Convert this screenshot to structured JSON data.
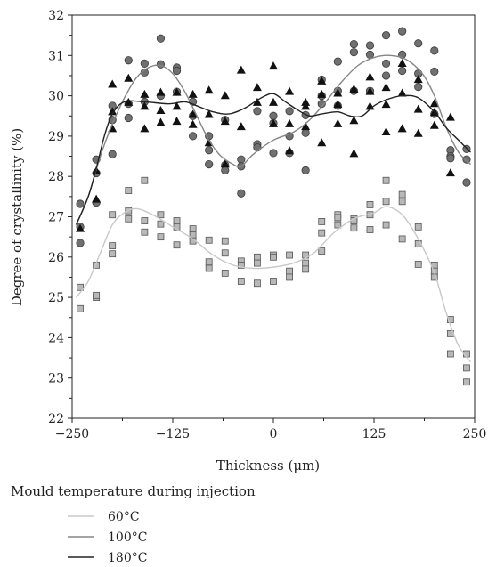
{
  "chart_data": {
    "type": "scatter",
    "xlabel": "Thickness (μm)",
    "ylabel": "Degree of crystallinity (%)",
    "xlim": [
      -250,
      250
    ],
    "ylim": [
      22,
      32
    ],
    "xticks": [
      -250,
      -125,
      0,
      125,
      250
    ],
    "yticks": [
      22,
      23,
      24,
      25,
      26,
      27,
      28,
      29,
      30,
      31,
      32
    ],
    "xtick_labels": [
      "−250",
      "−125",
      "0",
      "125",
      "250"
    ],
    "ytick_labels": [
      "22",
      "23",
      "24",
      "25",
      "26",
      "27",
      "28",
      "29",
      "30",
      "31",
      "32"
    ],
    "grid": false,
    "legend": {
      "title": "Mould temperature during injection",
      "placement": "bottom-left"
    },
    "series": [
      {
        "name": "60°C",
        "marker": "square",
        "marker_color": "#b8b8b8",
        "line_color": "#c8c8c8",
        "points": [
          [
            -240,
            25.25
          ],
          [
            -240,
            24.72
          ],
          [
            -220,
            25.8
          ],
          [
            -220,
            25.0
          ],
          [
            -220,
            25.05
          ],
          [
            -200,
            27.05
          ],
          [
            -200,
            26.28
          ],
          [
            -200,
            26.08
          ],
          [
            -180,
            27.65
          ],
          [
            -180,
            27.15
          ],
          [
            -180,
            26.95
          ],
          [
            -160,
            27.9
          ],
          [
            -160,
            26.9
          ],
          [
            -160,
            26.62
          ],
          [
            -140,
            27.05
          ],
          [
            -140,
            26.82
          ],
          [
            -140,
            26.5
          ],
          [
            -120,
            26.9
          ],
          [
            -120,
            26.75
          ],
          [
            -120,
            26.3
          ],
          [
            -100,
            26.7
          ],
          [
            -100,
            26.55
          ],
          [
            -100,
            26.4
          ],
          [
            -80,
            26.42
          ],
          [
            -80,
            25.88
          ],
          [
            -80,
            25.72
          ],
          [
            -60,
            26.4
          ],
          [
            -60,
            26.1
          ],
          [
            -60,
            25.6
          ],
          [
            -40,
            25.9
          ],
          [
            -40,
            25.8
          ],
          [
            -40,
            25.4
          ],
          [
            -20,
            26.0
          ],
          [
            -20,
            25.85
          ],
          [
            -20,
            25.35
          ],
          [
            0,
            26.05
          ],
          [
            0,
            26.0
          ],
          [
            0,
            25.4
          ],
          [
            20,
            26.05
          ],
          [
            20,
            25.65
          ],
          [
            20,
            25.5
          ],
          [
            40,
            26.05
          ],
          [
            40,
            25.85
          ],
          [
            40,
            25.7
          ],
          [
            60,
            26.88
          ],
          [
            60,
            26.6
          ],
          [
            60,
            26.15
          ],
          [
            80,
            27.05
          ],
          [
            80,
            26.98
          ],
          [
            80,
            26.8
          ],
          [
            100,
            26.95
          ],
          [
            100,
            26.9
          ],
          [
            100,
            26.72
          ],
          [
            120,
            27.3
          ],
          [
            120,
            27.05
          ],
          [
            120,
            26.68
          ],
          [
            140,
            27.9
          ],
          [
            140,
            27.38
          ],
          [
            140,
            26.8
          ],
          [
            160,
            27.55
          ],
          [
            160,
            27.38
          ],
          [
            160,
            26.45
          ],
          [
            180,
            26.75
          ],
          [
            180,
            26.33
          ],
          [
            180,
            25.82
          ],
          [
            200,
            25.8
          ],
          [
            200,
            25.65
          ],
          [
            200,
            25.5
          ],
          [
            220,
            24.45
          ],
          [
            220,
            24.1
          ],
          [
            220,
            23.6
          ],
          [
            240,
            23.6
          ],
          [
            240,
            23.25
          ],
          [
            240,
            22.9
          ]
        ],
        "fit": [
          [
            -245,
            25.0
          ],
          [
            -230,
            25.4
          ],
          [
            -215,
            26.1
          ],
          [
            -200,
            26.8
          ],
          [
            -185,
            27.1
          ],
          [
            -170,
            27.2
          ],
          [
            -150,
            27.05
          ],
          [
            -125,
            26.75
          ],
          [
            -100,
            26.45
          ],
          [
            -75,
            26.05
          ],
          [
            -50,
            25.8
          ],
          [
            -25,
            25.72
          ],
          [
            0,
            25.75
          ],
          [
            25,
            25.85
          ],
          [
            50,
            26.1
          ],
          [
            75,
            26.6
          ],
          [
            100,
            26.95
          ],
          [
            125,
            27.1
          ],
          [
            140,
            27.25
          ],
          [
            160,
            27.05
          ],
          [
            180,
            26.45
          ],
          [
            200,
            25.6
          ],
          [
            215,
            24.6
          ],
          [
            230,
            23.8
          ],
          [
            245,
            23.4
          ]
        ]
      },
      {
        "name": "100°C",
        "marker": "circle",
        "marker_color": "#707070",
        "line_color": "#858585",
        "points": [
          [
            -240,
            27.32
          ],
          [
            -240,
            26.75
          ],
          [
            -240,
            26.35
          ],
          [
            -220,
            28.42
          ],
          [
            -220,
            28.08
          ],
          [
            -220,
            27.35
          ],
          [
            -200,
            29.75
          ],
          [
            -200,
            29.4
          ],
          [
            -200,
            28.55
          ],
          [
            -180,
            30.88
          ],
          [
            -180,
            29.8
          ],
          [
            -180,
            29.45
          ],
          [
            -160,
            30.8
          ],
          [
            -160,
            30.58
          ],
          [
            -160,
            29.85
          ],
          [
            -140,
            31.42
          ],
          [
            -140,
            30.78
          ],
          [
            -140,
            30.0
          ],
          [
            -120,
            30.7
          ],
          [
            -120,
            30.62
          ],
          [
            -120,
            30.1
          ],
          [
            -100,
            29.85
          ],
          [
            -100,
            29.5
          ],
          [
            -100,
            29.0
          ],
          [
            -80,
            29.0
          ],
          [
            -80,
            28.65
          ],
          [
            -80,
            28.3
          ],
          [
            -60,
            29.4
          ],
          [
            -60,
            28.28
          ],
          [
            -60,
            28.15
          ],
          [
            -40,
            28.42
          ],
          [
            -40,
            28.25
          ],
          [
            -40,
            27.58
          ],
          [
            -20,
            29.62
          ],
          [
            -20,
            28.8
          ],
          [
            -20,
            28.72
          ],
          [
            0,
            29.5
          ],
          [
            0,
            29.32
          ],
          [
            0,
            28.58
          ],
          [
            20,
            29.62
          ],
          [
            20,
            29.0
          ],
          [
            20,
            28.58
          ],
          [
            40,
            29.52
          ],
          [
            40,
            29.08
          ],
          [
            40,
            28.15
          ],
          [
            60,
            30.4
          ],
          [
            60,
            30.0
          ],
          [
            60,
            29.8
          ],
          [
            80,
            30.85
          ],
          [
            80,
            30.12
          ],
          [
            80,
            29.75
          ],
          [
            100,
            31.28
          ],
          [
            100,
            31.08
          ],
          [
            100,
            30.12
          ],
          [
            120,
            31.25
          ],
          [
            120,
            31.02
          ],
          [
            120,
            30.12
          ],
          [
            140,
            31.5
          ],
          [
            140,
            30.8
          ],
          [
            140,
            30.5
          ],
          [
            160,
            31.6
          ],
          [
            160,
            31.02
          ],
          [
            160,
            30.62
          ],
          [
            180,
            31.3
          ],
          [
            180,
            30.55
          ],
          [
            180,
            30.22
          ],
          [
            200,
            31.12
          ],
          [
            200,
            30.6
          ],
          [
            200,
            29.55
          ],
          [
            220,
            28.65
          ],
          [
            220,
            28.5
          ],
          [
            220,
            28.45
          ],
          [
            240,
            28.68
          ],
          [
            240,
            28.42
          ],
          [
            240,
            27.85
          ]
        ],
        "fit": [
          [
            -245,
            26.8
          ],
          [
            -230,
            27.5
          ],
          [
            -215,
            28.5
          ],
          [
            -200,
            29.3
          ],
          [
            -185,
            29.95
          ],
          [
            -170,
            30.45
          ],
          [
            -155,
            30.7
          ],
          [
            -140,
            30.75
          ],
          [
            -125,
            30.55
          ],
          [
            -110,
            30.1
          ],
          [
            -95,
            29.5
          ],
          [
            -80,
            28.9
          ],
          [
            -65,
            28.5
          ],
          [
            -50,
            28.3
          ],
          [
            -40,
            28.25
          ],
          [
            -25,
            28.55
          ],
          [
            0,
            28.9
          ],
          [
            25,
            29.1
          ],
          [
            45,
            29.4
          ],
          [
            65,
            29.85
          ],
          [
            85,
            30.35
          ],
          [
            105,
            30.75
          ],
          [
            125,
            30.95
          ],
          [
            145,
            31.0
          ],
          [
            165,
            30.9
          ],
          [
            185,
            30.55
          ],
          [
            200,
            30.0
          ],
          [
            215,
            29.2
          ],
          [
            230,
            28.6
          ],
          [
            245,
            28.3
          ]
        ]
      },
      {
        "name": "180°C",
        "marker": "triangle",
        "marker_color": "#111111",
        "line_color": "#222222",
        "points": [
          [
            -240,
            26.72
          ],
          [
            -220,
            28.15
          ],
          [
            -220,
            27.45
          ],
          [
            -200,
            30.3
          ],
          [
            -200,
            29.62
          ],
          [
            -200,
            29.2
          ],
          [
            -180,
            30.45
          ],
          [
            -180,
            29.85
          ],
          [
            -160,
            30.05
          ],
          [
            -160,
            29.75
          ],
          [
            -160,
            29.2
          ],
          [
            -140,
            30.1
          ],
          [
            -140,
            29.65
          ],
          [
            -140,
            29.35
          ],
          [
            -120,
            30.1
          ],
          [
            -120,
            29.75
          ],
          [
            -120,
            29.38
          ],
          [
            -100,
            30.05
          ],
          [
            -100,
            29.55
          ],
          [
            -100,
            29.3
          ],
          [
            -80,
            30.15
          ],
          [
            -80,
            29.55
          ],
          [
            -80,
            28.85
          ],
          [
            -60,
            30.02
          ],
          [
            -60,
            29.38
          ],
          [
            -60,
            28.32
          ],
          [
            -40,
            30.65
          ],
          [
            -40,
            29.25
          ],
          [
            -20,
            30.22
          ],
          [
            -20,
            29.85
          ],
          [
            0,
            30.75
          ],
          [
            0,
            29.85
          ],
          [
            0,
            29.32
          ],
          [
            20,
            30.12
          ],
          [
            20,
            29.32
          ],
          [
            20,
            28.65
          ],
          [
            40,
            29.85
          ],
          [
            40,
            29.75
          ],
          [
            40,
            29.25
          ],
          [
            60,
            30.38
          ],
          [
            60,
            30.05
          ],
          [
            60,
            28.85
          ],
          [
            80,
            30.08
          ],
          [
            80,
            29.8
          ],
          [
            80,
            29.32
          ],
          [
            100,
            30.18
          ],
          [
            100,
            29.4
          ],
          [
            100,
            28.58
          ],
          [
            120,
            30.48
          ],
          [
            120,
            30.12
          ],
          [
            120,
            29.75
          ],
          [
            140,
            30.22
          ],
          [
            140,
            29.8
          ],
          [
            140,
            29.12
          ],
          [
            160,
            30.82
          ],
          [
            160,
            30.08
          ],
          [
            160,
            29.2
          ],
          [
            180,
            30.42
          ],
          [
            180,
            29.68
          ],
          [
            180,
            29.08
          ],
          [
            200,
            29.82
          ],
          [
            200,
            29.6
          ],
          [
            200,
            29.28
          ],
          [
            220,
            29.48
          ],
          [
            220,
            28.1
          ]
        ],
        "fit": [
          [
            -245,
            26.8
          ],
          [
            -230,
            27.5
          ],
          [
            -220,
            28.2
          ],
          [
            -210,
            29.0
          ],
          [
            -200,
            29.55
          ],
          [
            -185,
            29.85
          ],
          [
            -160,
            29.85
          ],
          [
            -130,
            29.8
          ],
          [
            -110,
            29.85
          ],
          [
            -95,
            29.75
          ],
          [
            -75,
            29.6
          ],
          [
            -55,
            29.55
          ],
          [
            -35,
            29.7
          ],
          [
            -15,
            29.95
          ],
          [
            0,
            30.05
          ],
          [
            15,
            29.85
          ],
          [
            30,
            29.65
          ],
          [
            45,
            29.5
          ],
          [
            60,
            29.55
          ],
          [
            80,
            29.6
          ],
          [
            95,
            29.5
          ],
          [
            110,
            29.5
          ],
          [
            125,
            29.75
          ],
          [
            140,
            29.9
          ],
          [
            160,
            30.0
          ],
          [
            180,
            29.95
          ],
          [
            200,
            29.6
          ],
          [
            215,
            29.2
          ],
          [
            230,
            28.9
          ],
          [
            245,
            28.6
          ]
        ]
      }
    ]
  }
}
